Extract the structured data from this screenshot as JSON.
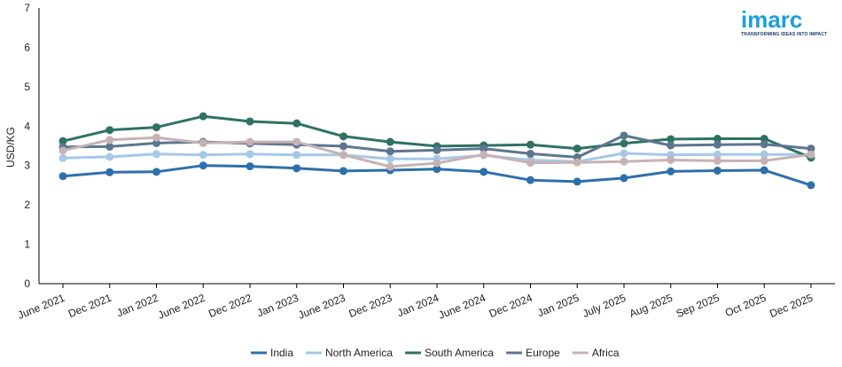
{
  "logo": {
    "text": "imarc",
    "tagline": "TRANSFORMING IDEAS INTO IMPACT",
    "color": "#1aa0dc"
  },
  "chart_data": {
    "type": "line",
    "title": "",
    "xlabel": "",
    "ylabel": "USD/KG",
    "ylim": [
      0,
      7
    ],
    "yticks": [
      "0",
      "1",
      "2",
      "3",
      "4",
      "5",
      "6",
      "7"
    ],
    "grid": false,
    "legend_position": "bottom",
    "categories": [
      "June 2021",
      "Dec 2021",
      "Jan 2022",
      "June 2022",
      "Dec 2022",
      "Jan 2023",
      "June 2023",
      "Dec 2023",
      "Jan 2024",
      "June 2024",
      "Dec 2024",
      "Jan 2025",
      "July 2025",
      "Aug 2025",
      "Sep 2025",
      "Oct 2025",
      "Dec 2025"
    ],
    "series": [
      {
        "name": "India",
        "color": "#2e6fad",
        "values": [
          2.73,
          2.83,
          2.84,
          3.0,
          2.98,
          2.93,
          2.86,
          2.88,
          2.91,
          2.84,
          2.63,
          2.59,
          2.68,
          2.85,
          2.87,
          2.88,
          2.5
        ]
      },
      {
        "name": "North America",
        "color": "#a5c8e8",
        "values": [
          3.19,
          3.22,
          3.29,
          3.27,
          3.29,
          3.27,
          3.27,
          3.17,
          3.17,
          3.26,
          3.14,
          3.1,
          3.31,
          3.27,
          3.28,
          3.28,
          3.28
        ]
      },
      {
        "name": "South America",
        "color": "#2f7264",
        "values": [
          3.62,
          3.9,
          3.97,
          4.25,
          4.12,
          4.07,
          3.74,
          3.6,
          3.49,
          3.51,
          3.53,
          3.43,
          3.56,
          3.67,
          3.68,
          3.68,
          3.2
        ]
      },
      {
        "name": "Europe",
        "color": "#5d7690",
        "values": [
          3.47,
          3.48,
          3.57,
          3.6,
          3.56,
          3.53,
          3.49,
          3.36,
          3.39,
          3.43,
          3.3,
          3.21,
          3.76,
          3.51,
          3.53,
          3.54,
          3.43
        ]
      },
      {
        "name": "Africa",
        "color": "#c7b2b3",
        "values": [
          3.38,
          3.65,
          3.71,
          3.57,
          3.6,
          3.6,
          3.27,
          2.97,
          3.06,
          3.28,
          3.07,
          3.08,
          3.1,
          3.14,
          3.12,
          3.12,
          3.28
        ]
      }
    ]
  }
}
